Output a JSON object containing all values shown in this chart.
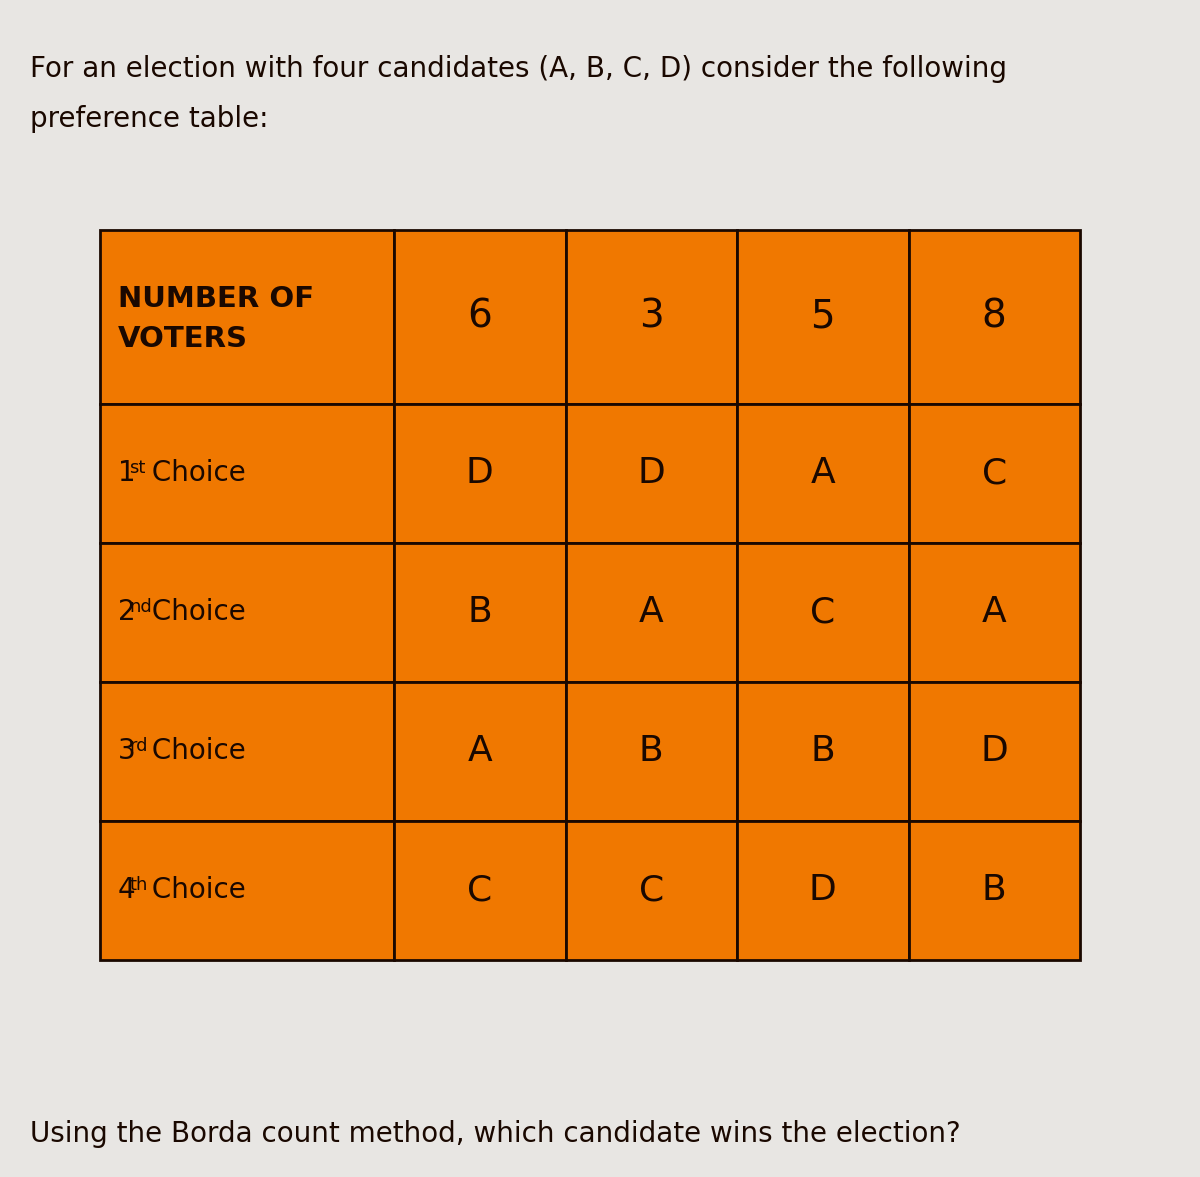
{
  "title_line1": "For an election with four candidates (A, B, C, D) consider the following",
  "title_line2": "preference table:",
  "footer": "Using the Borda count method, which candidate wins the election?",
  "bg_color": "#e8e6e3",
  "orange_color": "#F07800",
  "border_color": "#1a0800",
  "text_color": "#1a0800",
  "header_row": [
    "NUMBER OF\nVOTERS",
    "6",
    "3",
    "5",
    "8"
  ],
  "rows": [
    [
      "1st Choice",
      "D",
      "D",
      "A",
      "C"
    ],
    [
      "2nd Choice",
      "B",
      "A",
      "C",
      "A"
    ],
    [
      "3rd Choice",
      "A",
      "B",
      "B",
      "D"
    ],
    [
      "4th Choice",
      "C",
      "C",
      "D",
      "B"
    ]
  ],
  "superscripts": {
    "1st Choice": {
      "base": "1",
      "sup": "st",
      "rest": " Choice"
    },
    "2nd Choice": {
      "base": "2",
      "sup": "nd",
      "rest": " Choice"
    },
    "3rd Choice": {
      "base": "3",
      "sup": "rd",
      "rest": " Choice"
    },
    "4th Choice": {
      "base": "4",
      "sup": "th",
      "rest": " Choice"
    }
  },
  "title_fontsize": 20,
  "footer_fontsize": 20,
  "cell_fontsize": 26,
  "label_fontsize": 20,
  "header_num_fontsize": 28
}
